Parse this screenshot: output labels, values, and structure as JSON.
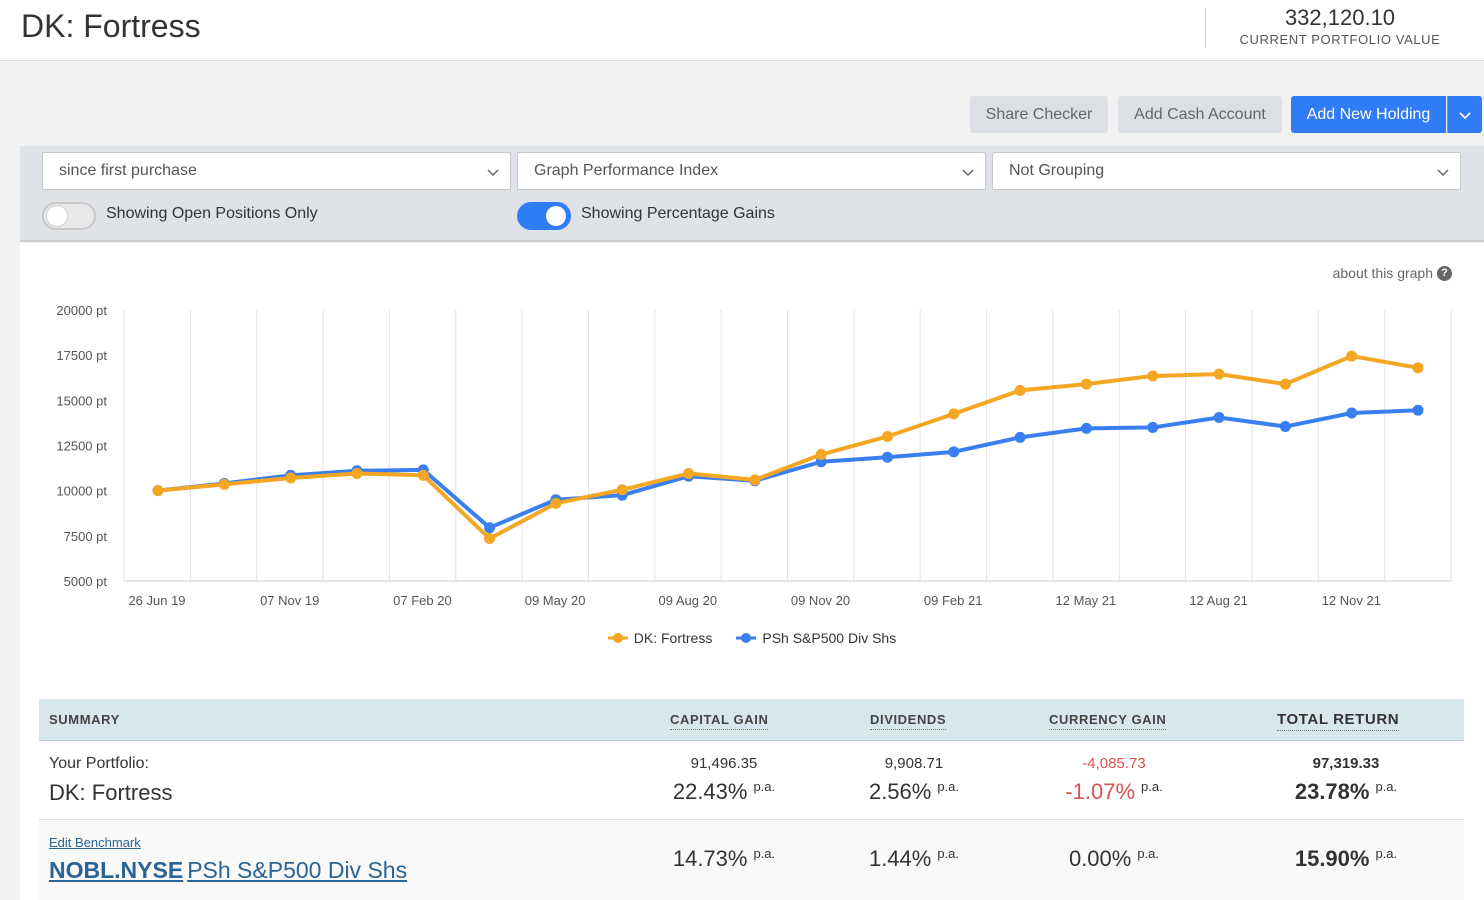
{
  "header": {
    "portfolio_name": "DK: Fortress",
    "portfolio_value": "332,120.10",
    "portfolio_value_label": "CURRENT PORTFOLIO VALUE"
  },
  "actions": {
    "share_checker": "Share Checker",
    "add_cash_account": "Add Cash Account",
    "add_new_holding": "Add New Holding"
  },
  "filters": {
    "period": "since first purchase",
    "graph_type": "Graph Performance Index",
    "grouping": "Not Grouping",
    "open_positions_label": "Showing Open Positions Only",
    "open_positions_on": false,
    "percentage_gains_label": "Showing Percentage Gains",
    "percentage_gains_on": true
  },
  "chart": {
    "about_label": "about this graph"
  },
  "chart_data": {
    "type": "line",
    "title": "",
    "xlabel": "",
    "ylabel": "",
    "ylim": [
      5000,
      20000
    ],
    "y_ticks": [
      "20000 pt",
      "17500 pt",
      "15000 pt",
      "12500 pt",
      "10000 pt",
      "7500 pt",
      "5000 pt"
    ],
    "x_tick_labels": [
      "26 Jun 19",
      "07 Nov 19",
      "07 Feb 20",
      "09 May 20",
      "09 Aug 20",
      "09 Nov 20",
      "09 Feb 21",
      "12 May 21",
      "12 Aug 21",
      "12 Nov 21"
    ],
    "grid": true,
    "legend_position": "bottom",
    "series": [
      {
        "name": "DK: Fortress",
        "color": "#f5a623",
        "values": [
          10000,
          10350,
          10700,
          10950,
          10850,
          7350,
          9300,
          10050,
          10950,
          10600,
          12000,
          13000,
          14250,
          15550,
          15900,
          16350,
          16450,
          15900,
          17450,
          16800
        ]
      },
      {
        "name": "PSh S&P500 Div Shs",
        "color": "#3a7ff0",
        "values": [
          10000,
          10400,
          10850,
          11100,
          11150,
          7950,
          9500,
          9750,
          10800,
          10550,
          11600,
          11850,
          12150,
          12950,
          13450,
          13500,
          14050,
          13550,
          14300,
          14450
        ]
      }
    ]
  },
  "summary": {
    "headers": {
      "summary": "SUMMARY",
      "capital_gain": "CAPITAL GAIN",
      "dividends": "DIVIDENDS",
      "currency_gain": "CURRENCY GAIN",
      "total_return": "TOTAL RETURN"
    },
    "portfolio": {
      "label": "Your Portfolio:",
      "name": "DK: Fortress",
      "capital_gain_amt": "91,496.35",
      "capital_gain_pct": "22.43%",
      "dividends_amt": "9,908.71",
      "dividends_pct": "2.56%",
      "currency_gain_amt": "-4,085.73",
      "currency_gain_pct": "-1.07%",
      "total_return_amt": "97,319.33",
      "total_return_pct": "23.78%"
    },
    "benchmark": {
      "edit_label": "Edit Benchmark",
      "code": "NOBL.NYSE",
      "name": "PSh S&P500 Div Shs",
      "capital_gain_pct": "14.73%",
      "dividends_pct": "1.44%",
      "currency_gain_pct": "0.00%",
      "total_return_pct": "15.90%"
    },
    "pa_label": "p.a."
  }
}
